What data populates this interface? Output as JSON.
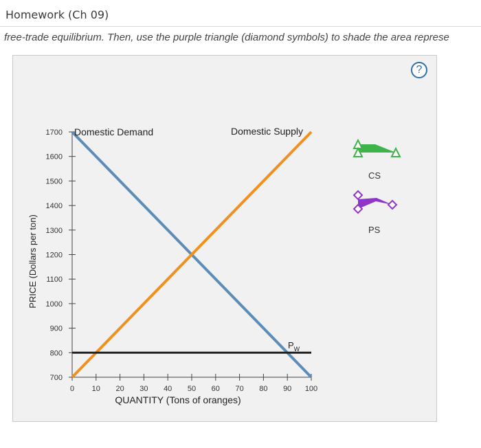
{
  "header": {
    "title": "Homework (Ch 09)"
  },
  "instruction": "free-trade equilibrium. Then, use the purple triangle (diamond symbols) to shade the area represe",
  "help": {
    "symbol": "?"
  },
  "tools": {
    "cs": {
      "label": "CS",
      "color": "#3db34a"
    },
    "ps": {
      "label": "PS",
      "color": "#8f35c9"
    }
  },
  "chart_data": {
    "type": "line",
    "xlabel": "QUANTITY (Tons of oranges)",
    "ylabel": "PRICE (Dollars per ton)",
    "xlim": [
      0,
      100
    ],
    "ylim": [
      700,
      1700
    ],
    "x_ticks": [
      0,
      10,
      20,
      30,
      40,
      50,
      60,
      70,
      80,
      90,
      100
    ],
    "y_ticks": [
      700,
      800,
      900,
      1000,
      1100,
      1200,
      1300,
      1400,
      1500,
      1600,
      1700
    ],
    "series": [
      {
        "name": "Domestic Demand",
        "color": "#5b8db8",
        "points": [
          [
            0,
            1700
          ],
          [
            100,
            700
          ]
        ]
      },
      {
        "name": "Domestic Supply",
        "color": "#f0901e",
        "points": [
          [
            0,
            700
          ],
          [
            100,
            1700
          ]
        ]
      },
      {
        "name": "Pw",
        "color": "#222222",
        "points": [
          [
            0,
            800
          ],
          [
            100,
            800
          ]
        ]
      }
    ]
  }
}
